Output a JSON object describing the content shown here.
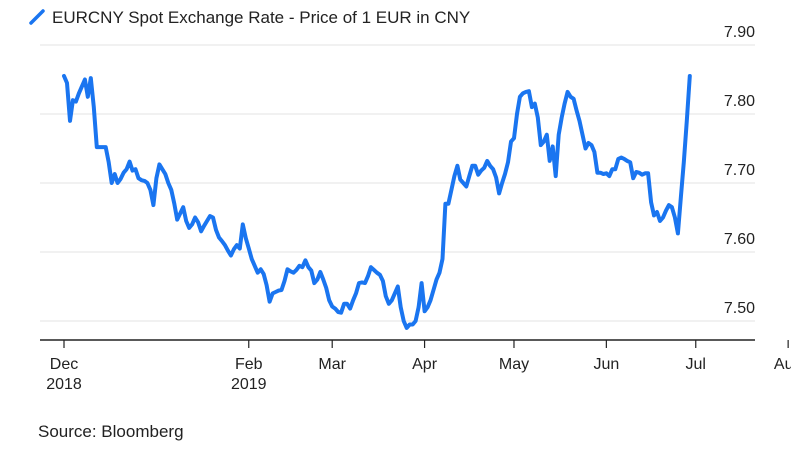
{
  "chart_data": {
    "type": "line",
    "title": "EURCNY Spot Exchange Rate - Price of 1 EUR in CNY",
    "source": "Source: Bloomberg",
    "series_color": "#1a75f0",
    "ylim": [
      7.47,
      7.92
    ],
    "y_ticks": [
      "7.90",
      "7.80",
      "7.70",
      "7.60",
      "7.50"
    ],
    "y_tick_values": [
      7.9,
      7.8,
      7.7,
      7.6,
      7.5
    ],
    "x_ticks": [
      {
        "label": "Dec",
        "sub": "2018",
        "day": 0
      },
      {
        "label": "Feb",
        "sub": "2019",
        "day": 62
      },
      {
        "label": "Mar",
        "sub": "",
        "day": 90
      },
      {
        "label": "Apr",
        "sub": "",
        "day": 121
      },
      {
        "label": "May",
        "sub": "",
        "day": 151
      },
      {
        "label": "Jun",
        "sub": "",
        "day": 182
      },
      {
        "label": "Jul",
        "sub": "",
        "day": 212
      },
      {
        "label": "Aug",
        "sub": "",
        "day": 243
      }
    ],
    "x_range_days": [
      -8,
      258
    ],
    "series": [
      {
        "name": "EURCNY Spot Exchange Rate - Price of 1 EUR in CNY",
        "points": [
          [
            0,
            7.855
          ],
          [
            1,
            7.845
          ],
          [
            2,
            7.79
          ],
          [
            3,
            7.82
          ],
          [
            4,
            7.818
          ],
          [
            5,
            7.83
          ],
          [
            6,
            7.84
          ],
          [
            7,
            7.85
          ],
          [
            8,
            7.825
          ],
          [
            9,
            7.852
          ],
          [
            10,
            7.81
          ],
          [
            11,
            7.752
          ],
          [
            12,
            7.752
          ],
          [
            13,
            7.752
          ],
          [
            14,
            7.752
          ],
          [
            15,
            7.73
          ],
          [
            16,
            7.7
          ],
          [
            17,
            7.713
          ],
          [
            18,
            7.7
          ],
          [
            19,
            7.706
          ],
          [
            20,
            7.715
          ],
          [
            21,
            7.72
          ],
          [
            22,
            7.731
          ],
          [
            23,
            7.718
          ],
          [
            24,
            7.72
          ],
          [
            25,
            7.707
          ],
          [
            26,
            7.704
          ],
          [
            27,
            7.703
          ],
          [
            28,
            7.7
          ],
          [
            29,
            7.69
          ],
          [
            30,
            7.668
          ],
          [
            31,
            7.707
          ],
          [
            32,
            7.727
          ],
          [
            33,
            7.72
          ],
          [
            34,
            7.713
          ],
          [
            35,
            7.7
          ],
          [
            36,
            7.69
          ],
          [
            37,
            7.67
          ],
          [
            38,
            7.647
          ],
          [
            39,
            7.656
          ],
          [
            40,
            7.665
          ],
          [
            41,
            7.645
          ],
          [
            42,
            7.635
          ],
          [
            43,
            7.64
          ],
          [
            44,
            7.65
          ],
          [
            45,
            7.643
          ],
          [
            46,
            7.63
          ],
          [
            47,
            7.638
          ],
          [
            48,
            7.645
          ],
          [
            49,
            7.652
          ],
          [
            50,
            7.65
          ],
          [
            51,
            7.632
          ],
          [
            52,
            7.621
          ],
          [
            53,
            7.616
          ],
          [
            54,
            7.61
          ],
          [
            55,
            7.602
          ],
          [
            56,
            7.595
          ],
          [
            57,
            7.604
          ],
          [
            58,
            7.61
          ],
          [
            59,
            7.605
          ],
          [
            60,
            7.64
          ],
          [
            61,
            7.62
          ],
          [
            62,
            7.605
          ],
          [
            63,
            7.59
          ],
          [
            64,
            7.58
          ],
          [
            65,
            7.57
          ],
          [
            66,
            7.575
          ],
          [
            67,
            7.568
          ],
          [
            68,
            7.552
          ],
          [
            69,
            7.528
          ],
          [
            70,
            7.54
          ],
          [
            71,
            7.542
          ],
          [
            72,
            7.544
          ],
          [
            73,
            7.545
          ],
          [
            74,
            7.558
          ],
          [
            75,
            7.575
          ],
          [
            76,
            7.572
          ],
          [
            77,
            7.57
          ],
          [
            78,
            7.574
          ],
          [
            79,
            7.58
          ],
          [
            80,
            7.578
          ],
          [
            81,
            7.588
          ],
          [
            82,
            7.578
          ],
          [
            83,
            7.573
          ],
          [
            84,
            7.555
          ],
          [
            85,
            7.56
          ],
          [
            86,
            7.571
          ],
          [
            87,
            7.56
          ],
          [
            88,
            7.548
          ],
          [
            89,
            7.53
          ],
          [
            90,
            7.521
          ],
          [
            91,
            7.518
          ],
          [
            92,
            7.513
          ],
          [
            93,
            7.512
          ],
          [
            94,
            7.525
          ],
          [
            95,
            7.525
          ],
          [
            96,
            7.518
          ],
          [
            97,
            7.53
          ],
          [
            98,
            7.54
          ],
          [
            99,
            7.555
          ],
          [
            100,
            7.556
          ],
          [
            101,
            7.555
          ],
          [
            102,
            7.565
          ],
          [
            103,
            7.578
          ],
          [
            104,
            7.574
          ],
          [
            105,
            7.57
          ],
          [
            106,
            7.567
          ],
          [
            107,
            7.558
          ],
          [
            108,
            7.536
          ],
          [
            109,
            7.525
          ],
          [
            110,
            7.53
          ],
          [
            111,
            7.54
          ],
          [
            112,
            7.55
          ],
          [
            113,
            7.52
          ],
          [
            114,
            7.5
          ],
          [
            115,
            7.49
          ],
          [
            116,
            7.495
          ],
          [
            117,
            7.495
          ],
          [
            118,
            7.5
          ],
          [
            119,
            7.52
          ],
          [
            120,
            7.555
          ],
          [
            121,
            7.514
          ],
          [
            122,
            7.52
          ],
          [
            123,
            7.53
          ],
          [
            124,
            7.545
          ],
          [
            125,
            7.56
          ],
          [
            126,
            7.57
          ],
          [
            127,
            7.59
          ],
          [
            128,
            7.67
          ],
          [
            129,
            7.67
          ],
          [
            130,
            7.69
          ],
          [
            131,
            7.71
          ],
          [
            132,
            7.725
          ],
          [
            133,
            7.705
          ],
          [
            134,
            7.7
          ],
          [
            135,
            7.695
          ],
          [
            136,
            7.71
          ],
          [
            137,
            7.725
          ],
          [
            138,
            7.725
          ],
          [
            139,
            7.712
          ],
          [
            140,
            7.718
          ],
          [
            141,
            7.722
          ],
          [
            142,
            7.732
          ],
          [
            143,
            7.725
          ],
          [
            144,
            7.72
          ],
          [
            145,
            7.708
          ],
          [
            146,
            7.685
          ],
          [
            147,
            7.7
          ],
          [
            148,
            7.713
          ],
          [
            149,
            7.73
          ],
          [
            150,
            7.76
          ],
          [
            151,
            7.765
          ],
          [
            152,
            7.8
          ],
          [
            153,
            7.825
          ],
          [
            154,
            7.83
          ],
          [
            155,
            7.832
          ],
          [
            156,
            7.833
          ],
          [
            157,
            7.81
          ],
          [
            158,
            7.815
          ],
          [
            159,
            7.795
          ],
          [
            160,
            7.755
          ],
          [
            161,
            7.76
          ],
          [
            162,
            7.77
          ],
          [
            163,
            7.732
          ],
          [
            164,
            7.753
          ],
          [
            165,
            7.71
          ],
          [
            166,
            7.77
          ],
          [
            167,
            7.795
          ],
          [
            168,
            7.815
          ],
          [
            169,
            7.832
          ],
          [
            170,
            7.825
          ],
          [
            171,
            7.822
          ],
          [
            172,
            7.805
          ],
          [
            173,
            7.79
          ],
          [
            174,
            7.77
          ],
          [
            175,
            7.75
          ],
          [
            176,
            7.758
          ],
          [
            177,
            7.755
          ],
          [
            178,
            7.745
          ],
          [
            179,
            7.715
          ],
          [
            180,
            7.715
          ],
          [
            181,
            7.713
          ],
          [
            182,
            7.714
          ],
          [
            183,
            7.71
          ],
          [
            184,
            7.72
          ],
          [
            185,
            7.72
          ],
          [
            186,
            7.735
          ],
          [
            187,
            7.737
          ],
          [
            188,
            7.735
          ],
          [
            189,
            7.732
          ],
          [
            190,
            7.73
          ],
          [
            191,
            7.707
          ],
          [
            192,
            7.716
          ],
          [
            193,
            7.715
          ],
          [
            194,
            7.712
          ],
          [
            195,
            7.714
          ],
          [
            196,
            7.714
          ],
          [
            197,
            7.672
          ],
          [
            198,
            7.653
          ],
          [
            199,
            7.658
          ],
          [
            200,
            7.645
          ],
          [
            201,
            7.65
          ],
          [
            202,
            7.66
          ],
          [
            203,
            7.668
          ],
          [
            204,
            7.665
          ],
          [
            205,
            7.65
          ],
          [
            206,
            7.627
          ],
          [
            207,
            7.68
          ],
          [
            208,
            7.73
          ],
          [
            209,
            7.79
          ],
          [
            210,
            7.855
          ]
        ]
      }
    ]
  }
}
